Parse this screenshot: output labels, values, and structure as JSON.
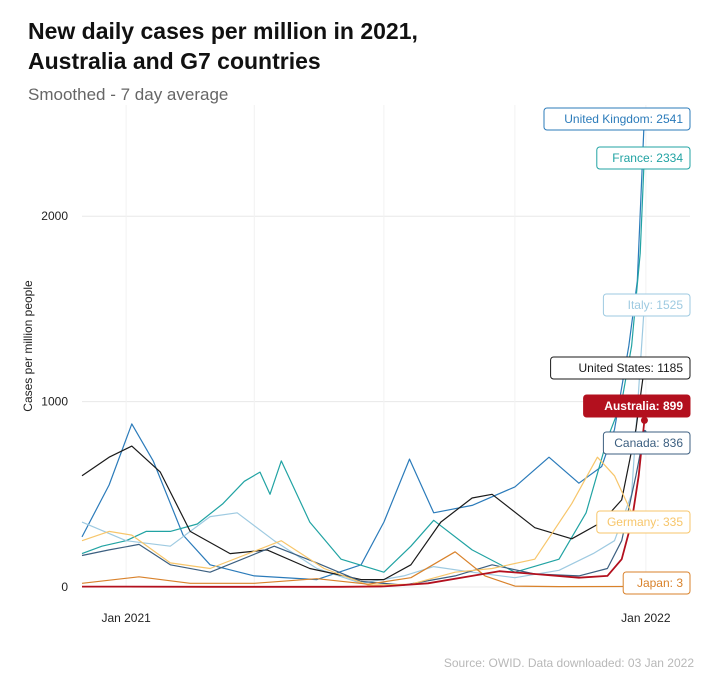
{
  "title": "New daily cases per million in 2021,\nAustralia and G7 countries",
  "subtitle": "Smoothed - 7 day average",
  "source": "Source: OWID. Data downloaded: 03 Jan 2022",
  "chart_data": {
    "type": "line",
    "title": "New daily cases per million in 2021, Australia and G7 countries",
    "subtitle": "Smoothed - 7 day average",
    "ylabel": "Cases per million people",
    "xlabel": "",
    "ylim": [
      0,
      2600
    ],
    "yticks": [
      0,
      1000,
      2000
    ],
    "xlim": [
      "2020-12-01",
      "2022-02-01"
    ],
    "xticks": [
      {
        "date": "2021-01-01",
        "label": "Jan 2021"
      },
      {
        "date": "2022-01-01",
        "label": "Jan 2022"
      }
    ],
    "grid": true,
    "legend": "right end labels",
    "series": [
      {
        "name": "United Kingdom",
        "label": "United Kingdom: 2541",
        "color": "#2b7bba",
        "x": [
          "2020-12-01",
          "2020-12-20",
          "2021-01-05",
          "2021-01-20",
          "2021-02-10",
          "2021-03-01",
          "2021-04-01",
          "2021-05-15",
          "2021-06-15",
          "2021-07-01",
          "2021-07-19",
          "2021-08-05",
          "2021-09-01",
          "2021-10-01",
          "2021-10-25",
          "2021-11-15",
          "2021-12-01",
          "2021-12-10",
          "2021-12-20",
          "2021-12-26",
          "2021-12-31"
        ],
        "y": [
          270,
          550,
          880,
          680,
          280,
          120,
          60,
          40,
          120,
          350,
          690,
          400,
          440,
          540,
          700,
          560,
          650,
          850,
          1300,
          1650,
          2541
        ]
      },
      {
        "name": "France",
        "label": "France: 2334",
        "color": "#21a3a3",
        "x": [
          "2020-12-01",
          "2020-12-15",
          "2021-01-01",
          "2021-01-15",
          "2021-02-01",
          "2021-02-20",
          "2021-03-10",
          "2021-03-25",
          "2021-04-05",
          "2021-04-12",
          "2021-04-20",
          "2021-05-10",
          "2021-06-01",
          "2021-07-01",
          "2021-07-20",
          "2021-08-05",
          "2021-09-01",
          "2021-10-01",
          "2021-11-01",
          "2021-11-20",
          "2021-12-05",
          "2021-12-15",
          "2021-12-22",
          "2021-12-28",
          "2021-12-31"
        ],
        "y": [
          180,
          220,
          250,
          300,
          300,
          340,
          450,
          570,
          620,
          500,
          680,
          350,
          150,
          80,
          220,
          360,
          200,
          80,
          150,
          400,
          800,
          1000,
          1300,
          1800,
          2334
        ]
      },
      {
        "name": "Italy",
        "label": "Italy: 1525",
        "color": "#9ecae1",
        "x": [
          "2020-12-01",
          "2021-01-01",
          "2021-02-01",
          "2021-03-01",
          "2021-03-20",
          "2021-04-15",
          "2021-05-15",
          "2021-06-15",
          "2021-07-15",
          "2021-08-05",
          "2021-09-01",
          "2021-10-01",
          "2021-11-01",
          "2021-11-25",
          "2021-12-10",
          "2021-12-22",
          "2021-12-31"
        ],
        "y": [
          350,
          250,
          220,
          380,
          400,
          250,
          100,
          20,
          60,
          110,
          80,
          50,
          90,
          180,
          250,
          500,
          1525
        ]
      },
      {
        "name": "United States",
        "label": "United States: 1185",
        "color": "#1a1a1a",
        "x": [
          "2020-12-01",
          "2020-12-20",
          "2021-01-05",
          "2021-01-25",
          "2021-02-15",
          "2021-03-15",
          "2021-04-10",
          "2021-05-10",
          "2021-06-15",
          "2021-07-01",
          "2021-07-20",
          "2021-08-10",
          "2021-09-01",
          "2021-09-15",
          "2021-10-15",
          "2021-11-10",
          "2021-12-01",
          "2021-12-15",
          "2021-12-25",
          "2021-12-31"
        ],
        "y": [
          600,
          700,
          760,
          620,
          300,
          180,
          200,
          100,
          40,
          40,
          120,
          350,
          480,
          500,
          320,
          260,
          350,
          470,
          850,
          1185
        ]
      },
      {
        "name": "Australia",
        "label": "Australia: 899",
        "color": "#b3101e",
        "x": [
          "2020-12-01",
          "2021-01-01",
          "2021-03-01",
          "2021-06-01",
          "2021-07-01",
          "2021-08-01",
          "2021-09-01",
          "2021-09-20",
          "2021-10-15",
          "2021-11-15",
          "2021-12-05",
          "2021-12-15",
          "2021-12-22",
          "2021-12-27",
          "2021-12-31"
        ],
        "y": [
          2,
          2,
          1,
          1,
          3,
          20,
          60,
          85,
          70,
          50,
          60,
          150,
          350,
          600,
          899
        ]
      },
      {
        "name": "Canada",
        "label": "Canada: 836",
        "color": "#3c5f80",
        "x": [
          "2020-12-01",
          "2020-12-20",
          "2021-01-10",
          "2021-02-01",
          "2021-03-01",
          "2021-04-15",
          "2021-05-15",
          "2021-06-15",
          "2021-07-15",
          "2021-08-20",
          "2021-09-15",
          "2021-10-15",
          "2021-11-15",
          "2021-12-05",
          "2021-12-15",
          "2021-12-25",
          "2021-12-31"
        ],
        "y": [
          170,
          200,
          230,
          120,
          80,
          220,
          130,
          30,
          10,
          60,
          120,
          70,
          60,
          100,
          250,
          600,
          836
        ]
      },
      {
        "name": "Germany",
        "label": "Germany: 335",
        "color": "#f7c66b",
        "x": [
          "2020-12-01",
          "2020-12-20",
          "2021-01-05",
          "2021-02-01",
          "2021-03-01",
          "2021-04-20",
          "2021-05-20",
          "2021-06-20",
          "2021-07-20",
          "2021-08-20",
          "2021-09-15",
          "2021-10-15",
          "2021-11-10",
          "2021-11-28",
          "2021-12-10",
          "2021-12-22",
          "2021-12-31"
        ],
        "y": [
          250,
          300,
          280,
          130,
          100,
          250,
          100,
          10,
          15,
          80,
          100,
          150,
          450,
          700,
          600,
          400,
          335
        ]
      },
      {
        "name": "Japan",
        "label": "Japan: 3",
        "color": "#d9822b",
        "x": [
          "2020-12-01",
          "2021-01-10",
          "2021-02-15",
          "2021-04-01",
          "2021-05-15",
          "2021-06-20",
          "2021-07-20",
          "2021-08-20",
          "2021-09-10",
          "2021-10-01",
          "2021-11-01",
          "2021-12-31"
        ],
        "y": [
          20,
          55,
          20,
          20,
          45,
          15,
          50,
          190,
          60,
          5,
          2,
          3
        ]
      }
    ]
  }
}
